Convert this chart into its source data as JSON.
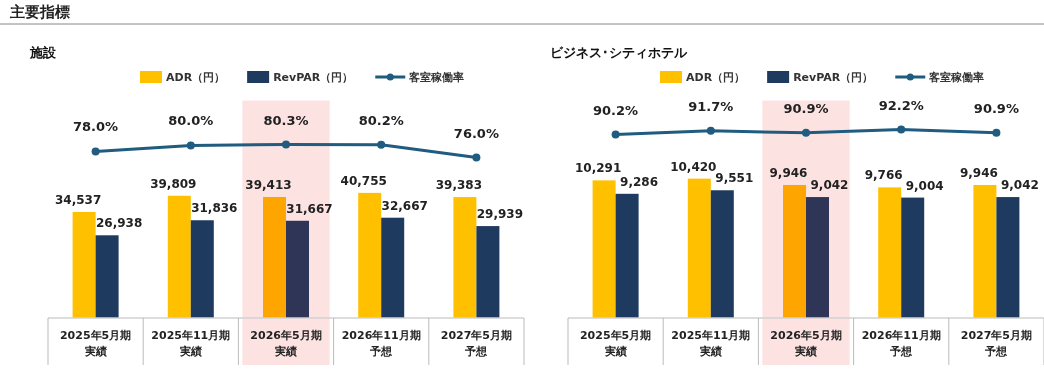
{
  "chart_data": [
    {
      "type": "bar",
      "title": "施設",
      "annotations": [
        "主要指標"
      ],
      "legend": "top",
      "marker": "circle",
      "categories": [
        "2025年5月期実績",
        "2025年11月期実績",
        "2026年5月期実績",
        "2026年11月期予想",
        "2027年5月期予想"
      ],
      "ylim": [
        0,
        71000
      ],
      "y2lim": [
        23,
        95
      ],
      "bands": [
        {
          "axis": "x",
          "from": "2026年5月期実績",
          "to": "2026年5月期実績",
          "color": "#fde2e2"
        }
      ],
      "series": [
        {
          "name": "ADR（円）",
          "color": "#ffc000",
          "colors": [
            "#ffc000",
            "#ffc000",
            "#ffa500",
            "#ffc000",
            "#ffc000"
          ],
          "values": [
            34537,
            39809,
            39413,
            40755,
            39383
          ],
          "value_labels": [
            "34,537",
            "39,809",
            "39,413",
            "40,755",
            "39,383"
          ]
        },
        {
          "name": "RevPAR（円）",
          "color": "#1f3a5f",
          "colors": [
            "#1f3a5f",
            "#1f3a5f",
            "#2e3556",
            "#1f3a5f",
            "#1f3a5f"
          ],
          "values": [
            26938,
            31836,
            31667,
            32667,
            29939
          ],
          "value_labels": [
            "26,938",
            "31,836",
            "31,667",
            "32,667",
            "29,939"
          ]
        },
        {
          "name": "客室稼働率",
          "type": "line",
          "axis": "y2",
          "color": "#1f5c7f",
          "values": [
            78.0,
            80.0,
            80.3,
            80.2,
            76.0
          ],
          "value_labels": [
            "78.0%",
            "80.0%",
            "80.3%",
            "80.2%",
            "76.0%"
          ]
        }
      ]
    },
    {
      "type": "bar",
      "title": "ビジネス･シティホテル",
      "legend": "top",
      "marker": "circle",
      "categories": [
        "2025年5月期実績",
        "2025年11月期実績",
        "2026年5月期実績",
        "2026年11月期予想",
        "2027年5月期予想"
      ],
      "ylim": [
        0,
        16300
      ],
      "y2lim": [
        17,
        104
      ],
      "bands": [
        {
          "axis": "x",
          "from": "2026年5月期実績",
          "to": "2026年5月期実績",
          "color": "#fde2e2"
        }
      ],
      "series": [
        {
          "name": "ADR（円）",
          "color": "#ffc000",
          "colors": [
            "#ffc000",
            "#ffc000",
            "#ffa500",
            "#ffc000",
            "#ffc000"
          ],
          "values": [
            10291,
            10420,
            9946,
            9766,
            9946
          ],
          "value_labels": [
            "10,291",
            "10,420",
            "9,946",
            "9,766",
            "9,946"
          ]
        },
        {
          "name": "RevPAR（円）",
          "color": "#1f3a5f",
          "colors": [
            "#1f3a5f",
            "#1f3a5f",
            "#2e3556",
            "#1f3a5f",
            "#1f3a5f"
          ],
          "values": [
            9286,
            9551,
            9042,
            9004,
            9042
          ],
          "value_labels": [
            "9,286",
            "9,551",
            "9,042",
            "9,004",
            "9,042"
          ]
        },
        {
          "name": "客室稼働率",
          "type": "line",
          "axis": "y2",
          "color": "#1f5c7f",
          "values": [
            90.2,
            91.7,
            90.9,
            92.2,
            90.9
          ],
          "value_labels": [
            "90.2%",
            "91.7%",
            "90.9%",
            "92.2%",
            "90.9%"
          ]
        }
      ]
    }
  ]
}
